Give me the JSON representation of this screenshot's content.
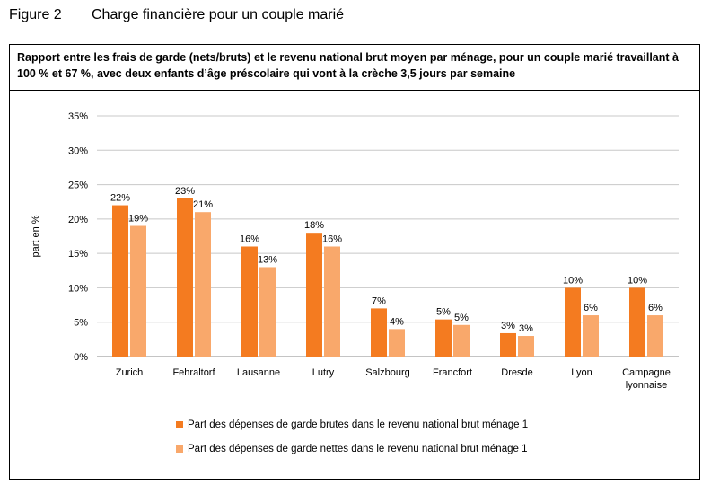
{
  "figure": {
    "number": "Figure 2",
    "title": "Charge financière pour un couple marié"
  },
  "chart_data": {
    "type": "bar",
    "title": "Rapport entre les frais de garde (nets/bruts) et le revenu national brut moyen par ménage, pour un couple marié travaillant à 100 % et 67 %, avec deux enfants d’âge préscolaire qui vont à la crèche 3,5 jours par semaine",
    "xlabel": "",
    "ylabel": "part en %",
    "ylim": [
      0,
      35
    ],
    "yticks": [
      0,
      5,
      10,
      15,
      20,
      25,
      30,
      35
    ],
    "ytick_labels": [
      "0%",
      "5%",
      "10%",
      "15%",
      "20%",
      "25%",
      "30%",
      "35%"
    ],
    "grid": true,
    "legend_position": "bottom",
    "categories": [
      "Zurich",
      "Fehraltorf",
      "Lausanne",
      "Lutry",
      "Salzbourg",
      "Francfort",
      "Dresde",
      "Lyon",
      "Campagne lyonnaise"
    ],
    "series": [
      {
        "name": "Part des dépenses de garde brutes dans le revenu national brut ménage 1",
        "color": "#f47b20",
        "values": [
          22,
          23,
          16,
          18,
          7,
          5.4,
          3.4,
          10,
          10
        ],
        "labels": [
          "22%",
          "23%",
          "16%",
          "18%",
          "7%",
          "5%",
          "3%",
          "10%",
          "10%"
        ]
      },
      {
        "name": "Part des dépenses de garde nettes dans le revenu national brut ménage 1",
        "color": "#f9a86b",
        "values": [
          19,
          21,
          13,
          16,
          4,
          4.6,
          3,
          6,
          6
        ],
        "labels": [
          "19%",
          "21%",
          "13%",
          "16%",
          "4%",
          "5%",
          "3%",
          "6%",
          "6%"
        ]
      }
    ]
  }
}
